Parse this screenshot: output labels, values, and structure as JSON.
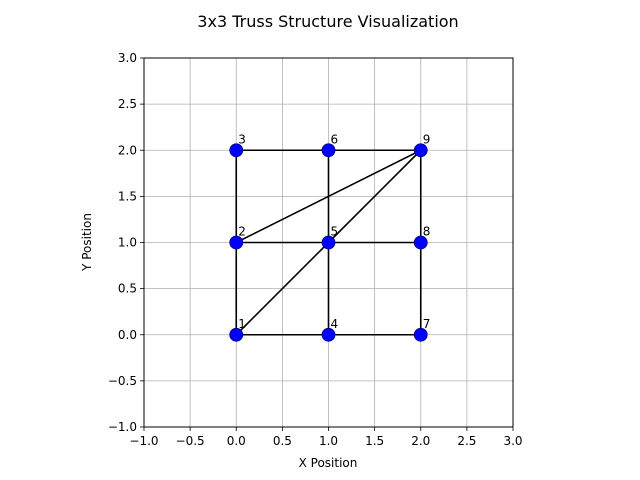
{
  "chart_data": {
    "type": "scatter",
    "title": "3x3 Truss Structure Visualization",
    "xlabel": "X Position",
    "ylabel": "Y Position",
    "xlim": [
      -1.0,
      3.0
    ],
    "ylim": [
      -1.0,
      3.0
    ],
    "grid": true,
    "xticks": [
      "−1.0",
      "−0.5",
      "0.0",
      "0.5",
      "1.0",
      "1.5",
      "2.0",
      "2.5",
      "3.0"
    ],
    "yticks": [
      "−1.0",
      "−0.5",
      "0.0",
      "0.5",
      "1.0",
      "1.5",
      "2.0",
      "2.5",
      "3.0"
    ],
    "node_color": "#0000ff",
    "member_color": "#000000",
    "grid_color": "#b0b0b0",
    "nodes": [
      {
        "id": "1",
        "x": 0,
        "y": 0
      },
      {
        "id": "2",
        "x": 0,
        "y": 1
      },
      {
        "id": "3",
        "x": 0,
        "y": 2
      },
      {
        "id": "4",
        "x": 1,
        "y": 0
      },
      {
        "id": "5",
        "x": 1,
        "y": 1
      },
      {
        "id": "6",
        "x": 1,
        "y": 2
      },
      {
        "id": "7",
        "x": 2,
        "y": 0
      },
      {
        "id": "8",
        "x": 2,
        "y": 1
      },
      {
        "id": "9",
        "x": 2,
        "y": 2
      }
    ],
    "members": [
      [
        "1",
        "2"
      ],
      [
        "2",
        "3"
      ],
      [
        "1",
        "4"
      ],
      [
        "4",
        "7"
      ],
      [
        "2",
        "5"
      ],
      [
        "5",
        "8"
      ],
      [
        "3",
        "6"
      ],
      [
        "6",
        "9"
      ],
      [
        "4",
        "5"
      ],
      [
        "5",
        "6"
      ],
      [
        "7",
        "8"
      ],
      [
        "8",
        "9"
      ],
      [
        "1",
        "5"
      ],
      [
        "5",
        "9"
      ],
      [
        "2",
        "9"
      ]
    ]
  }
}
